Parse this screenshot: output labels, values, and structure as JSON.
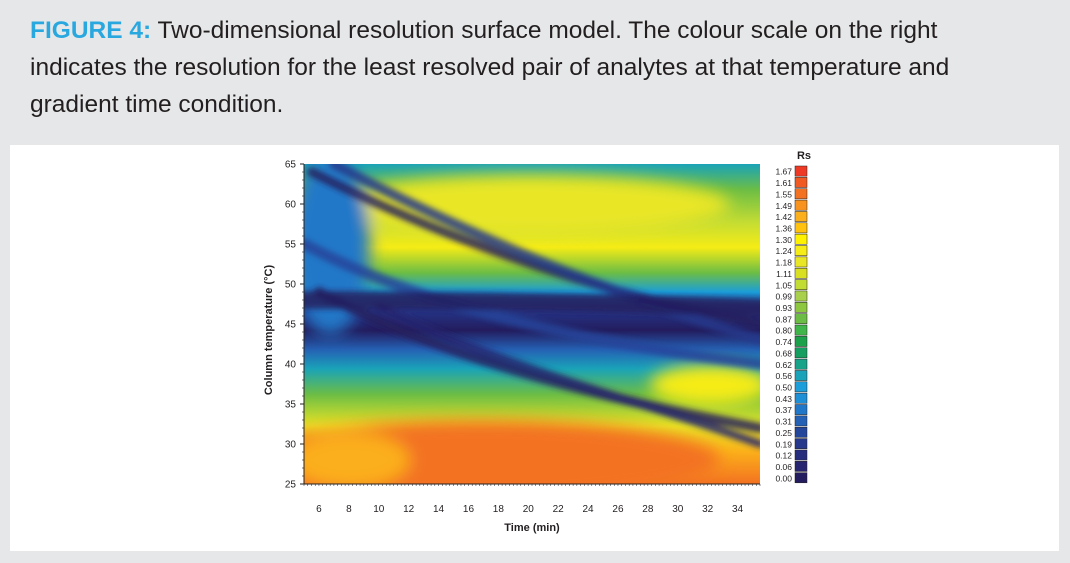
{
  "caption": {
    "figure_label": "FIGURE 4:",
    "text": " Two-dimensional resolution surface model. The colour scale on the right indicates the resolution for the least resolved pair of analytes at that temperature and gradient time condition."
  },
  "chart_data": {
    "type": "heatmap",
    "title": "",
    "xlabel": "Time (min)",
    "ylabel": "Column temperature (°C)",
    "xlim": [
      5,
      35.5
    ],
    "ylim": [
      25,
      65
    ],
    "x_ticks": [
      6,
      8,
      10,
      12,
      14,
      16,
      18,
      20,
      22,
      24,
      26,
      28,
      30,
      32,
      34
    ],
    "y_ticks": [
      25,
      30,
      35,
      40,
      45,
      50,
      55,
      60,
      65
    ],
    "colorbar": {
      "label": "Rs",
      "ticks": [
        "1.67",
        "1.61",
        "1.55",
        "1.49",
        "1.42",
        "1.36",
        "1.30",
        "1.24",
        "1.18",
        "1.11",
        "1.05",
        "0.99",
        "0.93",
        "0.87",
        "0.80",
        "0.74",
        "0.68",
        "0.62",
        "0.56",
        "0.50",
        "0.43",
        "0.37",
        "0.31",
        "0.25",
        "0.19",
        "0.12",
        "0.06",
        "0.00"
      ],
      "colors": [
        "#ee3a24",
        "#f05a22",
        "#f37221",
        "#f7931e",
        "#fbaf1a",
        "#ffc20e",
        "#fff200",
        "#f6ec16",
        "#e9e625",
        "#d9e021",
        "#c2dc34",
        "#a8d04a",
        "#8dc63f",
        "#6cbd45",
        "#3fb54a",
        "#1ba14a",
        "#149f60",
        "#17a28a",
        "#1aa3b8",
        "#1b9ed9",
        "#1f8fd6",
        "#2278c8",
        "#2561b4",
        "#24479b",
        "#25388c",
        "#262d7d",
        "#262470",
        "#231c5e"
      ]
    },
    "surface": {
      "high_region": {
        "time_range": [
          14,
          26
        ],
        "temp_range": [
          26,
          32
        ],
        "rs": 1.67
      },
      "low_band_temp": 48,
      "description_values": {
        "max_rs": 1.67,
        "min_rs": 0.0
      }
    }
  }
}
